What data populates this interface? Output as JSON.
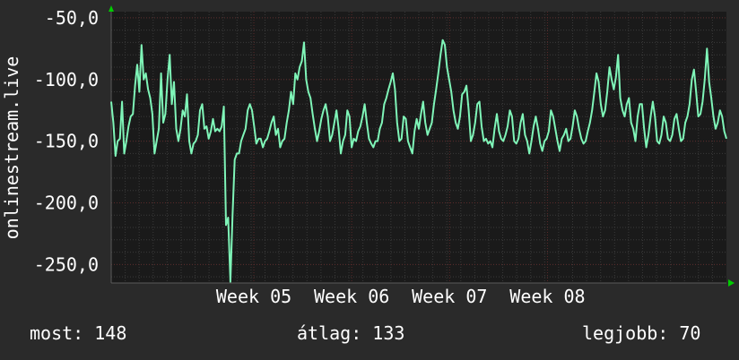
{
  "chart_data": {
    "type": "line",
    "ylabel": "onlinestream.live",
    "ylim": [
      -265,
      -45
    ],
    "y_ticks": [
      -50,
      -100,
      -150,
      -200,
      -250
    ],
    "y_tick_labels": [
      "-50,0",
      "-100,0",
      "-150,0",
      "-200,0",
      "-250,0"
    ],
    "x_ticks": [
      "Week 05",
      "Week 06",
      "Week 07",
      "Week 08"
    ],
    "grid": true,
    "colors": {
      "background": "#2a2a2a",
      "plot": "#1a1a1a",
      "line": "#7ff5b8",
      "grid_minor": "#3a3a3a",
      "grid_major": "#5a2a2a",
      "arrow": "#00cc00"
    },
    "series": [
      {
        "values": [
          -118,
          -135,
          -162,
          -150,
          -148,
          -118,
          -160,
          -150,
          -138,
          -130,
          -128,
          -105,
          -88,
          -110,
          -72,
          -100,
          -95,
          -108,
          -115,
          -128,
          -160,
          -150,
          -140,
          -95,
          -135,
          -128,
          -100,
          -80,
          -120,
          -102,
          -140,
          -150,
          -140,
          -125,
          -130,
          -112,
          -150,
          -160,
          -152,
          -150,
          -145,
          -125,
          -120,
          -140,
          -138,
          -148,
          -142,
          -132,
          -142,
          -140,
          -142,
          -138,
          -122,
          -218,
          -212,
          -264,
          -210,
          -165,
          -160,
          -160,
          -150,
          -145,
          -140,
          -125,
          -120,
          -125,
          -138,
          -152,
          -148,
          -148,
          -155,
          -150,
          -148,
          -142,
          -135,
          -130,
          -145,
          -140,
          -155,
          -150,
          -148,
          -135,
          -125,
          -110,
          -120,
          -95,
          -100,
          -90,
          -85,
          -70,
          -100,
          -110,
          -115,
          -128,
          -140,
          -150,
          -142,
          -132,
          -125,
          -120,
          -130,
          -150,
          -145,
          -135,
          -125,
          -140,
          -160,
          -150,
          -145,
          -125,
          -130,
          -155,
          -148,
          -150,
          -142,
          -138,
          -130,
          -120,
          -135,
          -148,
          -152,
          -155,
          -150,
          -150,
          -140,
          -135,
          -120,
          -115,
          -108,
          -102,
          -95,
          -108,
          -135,
          -150,
          -148,
          -130,
          -132,
          -150,
          -155,
          -160,
          -142,
          -132,
          -140,
          -128,
          -118,
          -135,
          -145,
          -140,
          -135,
          -120,
          -108,
          -95,
          -80,
          -68,
          -72,
          -90,
          -100,
          -110,
          -125,
          -135,
          -140,
          -130,
          -112,
          -110,
          -105,
          -125,
          -150,
          -145,
          -135,
          -120,
          -118,
          -138,
          -150,
          -148,
          -152,
          -150,
          -155,
          -140,
          -128,
          -142,
          -148,
          -150,
          -145,
          -138,
          -125,
          -130,
          -150,
          -152,
          -148,
          -135,
          -128,
          -145,
          -150,
          -160,
          -150,
          -138,
          -130,
          -140,
          -152,
          -158,
          -150,
          -148,
          -142,
          -125,
          -130,
          -140,
          -150,
          -158,
          -148,
          -145,
          -140,
          -150,
          -148,
          -138,
          -125,
          -130,
          -140,
          -148,
          -152,
          -150,
          -142,
          -135,
          -125,
          -110,
          -95,
          -102,
          -120,
          -130,
          -125,
          -110,
          -90,
          -100,
          -108,
          -98,
          -80,
          -115,
          -125,
          -130,
          -120,
          -115,
          -135,
          -140,
          -150,
          -130,
          -120,
          -120,
          -140,
          -155,
          -145,
          -130,
          -118,
          -130,
          -150,
          -152,
          -145,
          -130,
          -135,
          -148,
          -150,
          -145,
          -132,
          -128,
          -140,
          -150,
          -148,
          -135,
          -130,
          -120,
          -100,
          -92,
          -110,
          -130,
          -128,
          -118,
          -100,
          -75,
          -102,
          -115,
          -130,
          -140,
          -135,
          -125,
          -130,
          -142,
          -148
        ]
      }
    ]
  },
  "footer": {
    "current": "most: 148",
    "average": "átlag: 133",
    "max": "legjobb: 70"
  }
}
